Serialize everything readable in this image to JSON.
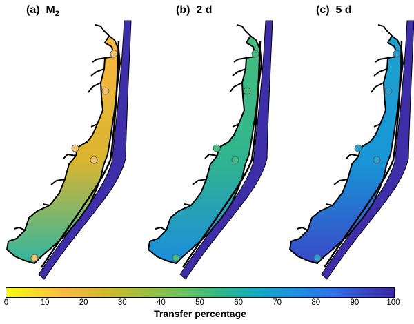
{
  "panels": [
    {
      "letter": "(a)",
      "label": "M",
      "sub": "2",
      "fill_top": "#f8b640",
      "fill_mid": "#d9b530",
      "fill_bot": "#2fb6a0",
      "point_color": "#f5c06a"
    },
    {
      "letter": "(b)",
      "label": "2 d",
      "sub": "",
      "fill_top": "#45bf7c",
      "fill_mid": "#30b48f",
      "fill_bot": "#1c8ddf",
      "point_color": "#3fbf84"
    },
    {
      "letter": "(c)",
      "label": "5 d",
      "sub": "",
      "fill_top": "#1ea2cf",
      "fill_mid": "#1896d6",
      "fill_bot": "#3a48c8",
      "point_color": "#2aa0d0"
    }
  ],
  "ocean_color": "#3e2ea8",
  "colorbar": {
    "ticks": [
      "0",
      "10",
      "20",
      "30",
      "40",
      "50",
      "60",
      "70",
      "80",
      "90",
      "100"
    ],
    "label": "Transfer percentage",
    "min": 0,
    "max": 100
  }
}
